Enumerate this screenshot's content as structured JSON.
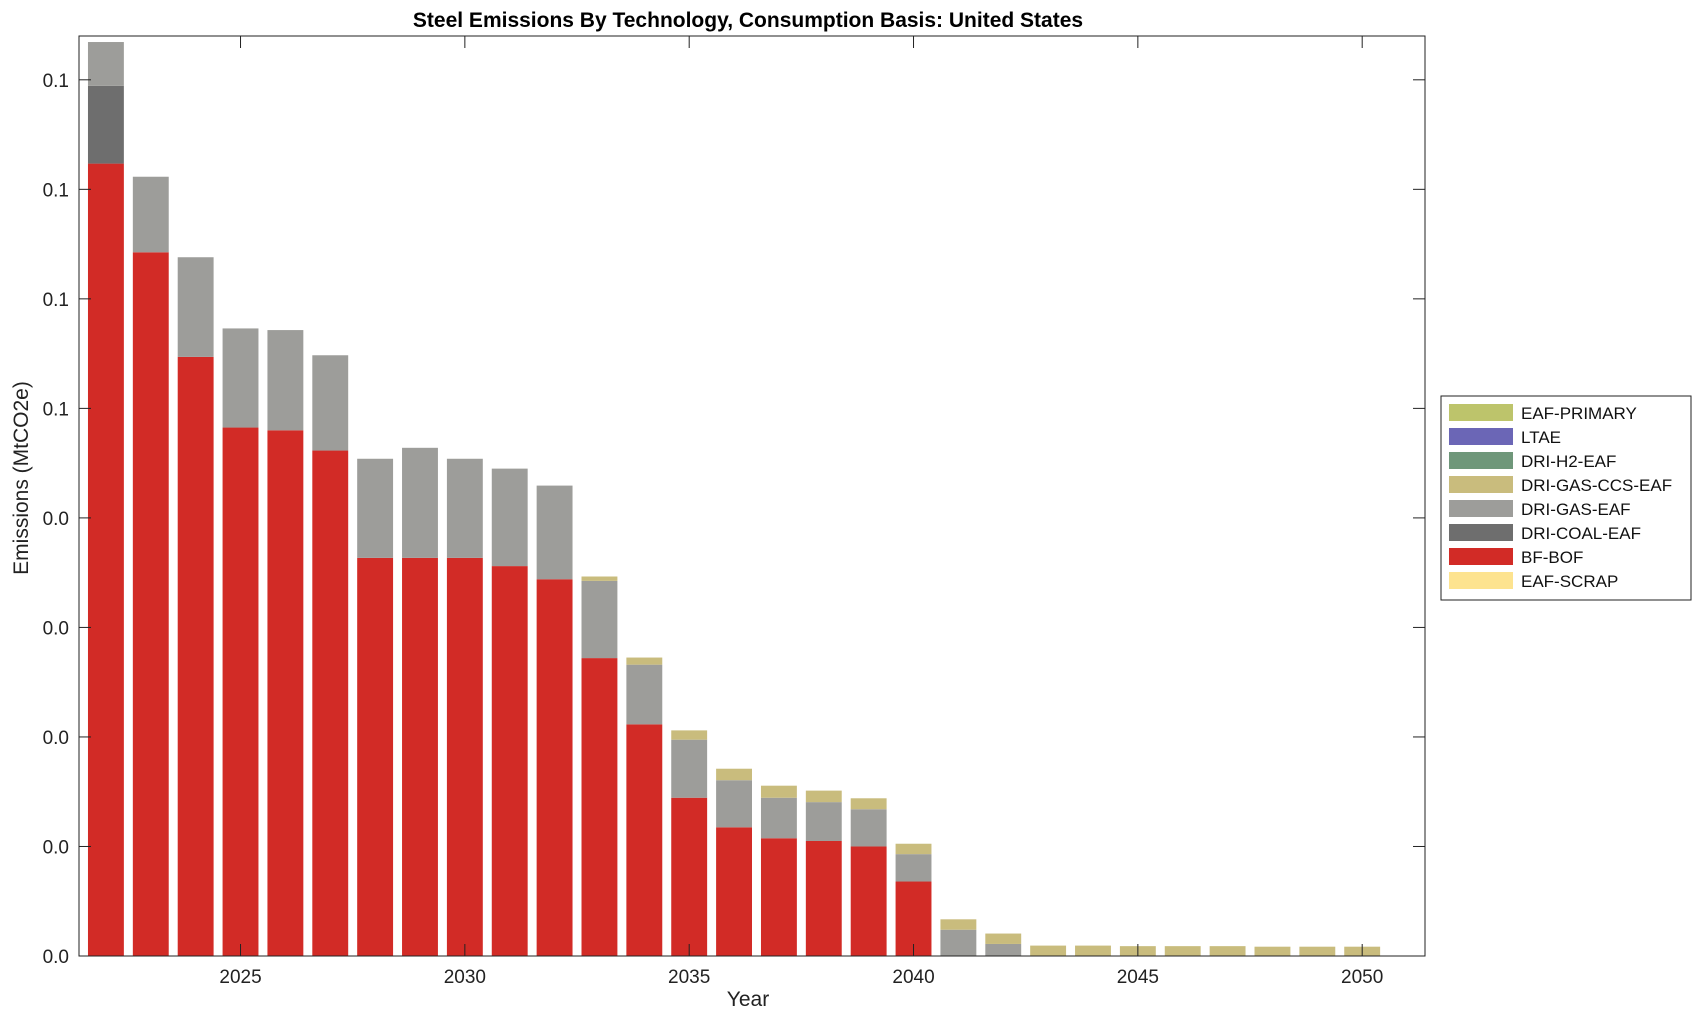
{
  "chart_data": {
    "type": "bar",
    "stacked": true,
    "title": "Steel Emissions By Technology, Consumption Basis: United States",
    "xlabel": "Year",
    "ylabel": "Emissions (MtCO2e)",
    "xlim": [
      2021.4,
      2051.4
    ],
    "ylim": [
      0,
      0.168
    ],
    "yticks": [
      0,
      0.02,
      0.04,
      0.06,
      0.08,
      0.1,
      0.12,
      0.14,
      0.16
    ],
    "ytick_labels": [
      "0.0",
      "0.0",
      "0.0",
      "0.0",
      "0.0",
      "0.1",
      "0.1",
      "0.1",
      "0.1"
    ],
    "xticks": [
      2025,
      2030,
      2035,
      2040,
      2045,
      2050
    ],
    "xtick_labels": [
      "2025",
      "2030",
      "2035",
      "2040",
      "2045",
      "2050"
    ],
    "grid": false,
    "legend_position": "outside-right",
    "categories": [
      2022,
      2023,
      2024,
      2025,
      2026,
      2027,
      2028,
      2029,
      2030,
      2031,
      2032,
      2033,
      2034,
      2035,
      2036,
      2037,
      2038,
      2039,
      2040,
      2041,
      2042,
      2043,
      2044,
      2045,
      2046,
      2047,
      2048,
      2049,
      2050
    ],
    "series": [
      {
        "name": "EAF-SCRAP",
        "color": "#FDE38F",
        "values": [
          0,
          0,
          0,
          0,
          0,
          0,
          0,
          0,
          0,
          0,
          0,
          0,
          0,
          0,
          0,
          0,
          0,
          0,
          0,
          0,
          0,
          0,
          0,
          0,
          0,
          0,
          0,
          0,
          0
        ]
      },
      {
        "name": "BF-BOF",
        "color": "#D22B26",
        "values": [
          0.1447,
          0.1285,
          0.1094,
          0.0965,
          0.096,
          0.0923,
          0.0727,
          0.0727,
          0.0727,
          0.0712,
          0.0688,
          0.0544,
          0.0423,
          0.0289,
          0.0235,
          0.0215,
          0.021,
          0.02,
          0.0136,
          0,
          0,
          0,
          0,
          0,
          0,
          0,
          0,
          0,
          0
        ]
      },
      {
        "name": "DRI-COAL-EAF",
        "color": "#6E6E6E",
        "values": [
          0.0142,
          0,
          0,
          0,
          0,
          0,
          0,
          0,
          0,
          0,
          0,
          0,
          0,
          0,
          0,
          0,
          0,
          0,
          0,
          0,
          0,
          0,
          0,
          0,
          0,
          0,
          0,
          0,
          0
        ]
      },
      {
        "name": "DRI-GAS-EAF",
        "color": "#9D9D9A",
        "values": [
          0.008,
          0.0138,
          0.0182,
          0.0181,
          0.0183,
          0.0174,
          0.0181,
          0.0201,
          0.0181,
          0.0178,
          0.0171,
          0.0141,
          0.0109,
          0.0106,
          0.0086,
          0.0074,
          0.0071,
          0.0068,
          0.005,
          0.0048,
          0.0022,
          0,
          0,
          0,
          0,
          0,
          0,
          0,
          0
        ]
      },
      {
        "name": "DRI-GAS-CCS-EAF",
        "color": "#C9BC7D",
        "values": [
          0,
          0,
          0,
          0,
          0,
          0,
          0,
          0,
          0,
          0,
          0,
          0.0008,
          0.0013,
          0.0017,
          0.0021,
          0.0022,
          0.0021,
          0.002,
          0.0019,
          0.0019,
          0.0019,
          0.0019,
          0.0019,
          0.0018,
          0.0018,
          0.0018,
          0.0017,
          0.0017,
          0.0017
        ]
      },
      {
        "name": "DRI-H2-EAF",
        "color": "#6F977A",
        "values": [
          0,
          0,
          0,
          0,
          0,
          0,
          0,
          0,
          0,
          0,
          0,
          0,
          0,
          0,
          0,
          0,
          0,
          0,
          0,
          0,
          0,
          0,
          0,
          0,
          0,
          0,
          0,
          0,
          0
        ]
      },
      {
        "name": "LTAE",
        "color": "#6B66B6",
        "values": [
          0,
          0,
          0,
          0,
          0,
          0,
          0,
          0,
          0,
          0,
          0,
          0,
          0,
          0,
          0,
          0,
          0,
          0,
          0,
          0,
          0,
          0,
          0,
          0,
          0,
          0,
          0,
          0,
          0
        ]
      },
      {
        "name": "EAF-PRIMARY",
        "color": "#BDC46B",
        "values": [
          0,
          0,
          0,
          0,
          0,
          0,
          0,
          0,
          0,
          0,
          0,
          0,
          0,
          0,
          0,
          0,
          0,
          0,
          0,
          0,
          0,
          0,
          0,
          0,
          0,
          0,
          0,
          0,
          0
        ]
      }
    ]
  }
}
